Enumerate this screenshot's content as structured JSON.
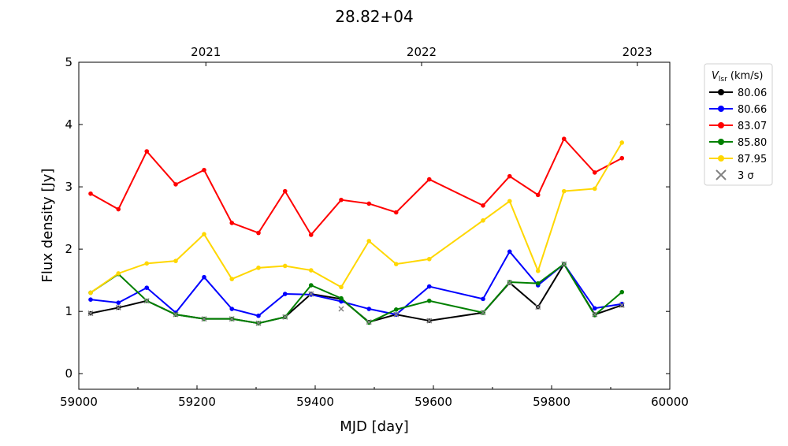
{
  "chart_data": {
    "type": "line",
    "title": "28.82+04",
    "xlabel": "MJD [day]",
    "ylabel": "Flux density [Jy]",
    "xlim": [
      59000,
      60000
    ],
    "ylim": [
      -0.25,
      5
    ],
    "xticks": [
      59000,
      59200,
      59400,
      59600,
      59800,
      60000
    ],
    "yticks": [
      0,
      1,
      2,
      3,
      4,
      5
    ],
    "top_axis": {
      "ticks": [
        {
          "label": "2021",
          "mjd": 59215
        },
        {
          "label": "2022",
          "mjd": 59580
        },
        {
          "label": "2023",
          "mjd": 59945
        }
      ]
    },
    "legend": {
      "title_main": "V",
      "title_sub": "lsr",
      "title_unit": " (km/s)",
      "placement": "outside-right"
    },
    "x": [
      59020,
      59067,
      59115,
      59164,
      59212,
      59259,
      59304,
      59349,
      59393,
      59444,
      59491,
      59537,
      59593,
      59684,
      59729,
      59777,
      59821,
      59873,
      59919
    ],
    "series": [
      {
        "name": "80.06",
        "color": "#000000",
        "values": [
          0.97,
          1.06,
          1.17,
          0.95,
          0.88,
          0.88,
          0.81,
          0.91,
          1.28,
          1.2,
          0.83,
          0.95,
          0.85,
          0.98,
          1.46,
          1.07,
          1.76,
          0.95,
          1.1
        ]
      },
      {
        "name": "80.66",
        "color": "#0000ff",
        "values": [
          1.19,
          1.14,
          1.38,
          0.98,
          1.55,
          1.04,
          0.93,
          1.28,
          1.27,
          1.16,
          1.04,
          0.95,
          1.4,
          1.2,
          1.96,
          1.42,
          1.76,
          1.05,
          1.12
        ]
      },
      {
        "name": "83.07",
        "color": "#ff0000",
        "values": [
          2.89,
          2.64,
          3.57,
          3.04,
          3.27,
          2.42,
          2.26,
          2.93,
          2.23,
          2.79,
          2.73,
          2.59,
          3.12,
          2.7,
          3.17,
          2.87,
          3.77,
          3.23,
          3.46
        ]
      },
      {
        "name": "85.80",
        "color": "#008000",
        "values": [
          1.3,
          1.6,
          1.17,
          0.95,
          0.88,
          0.88,
          0.81,
          0.91,
          1.42,
          1.21,
          0.82,
          1.03,
          1.17,
          0.98,
          1.47,
          1.45,
          1.76,
          0.94,
          1.31
        ]
      },
      {
        "name": "87.95",
        "color": "#ffd700",
        "values": [
          1.3,
          1.61,
          1.77,
          1.81,
          2.24,
          1.52,
          1.7,
          1.73,
          1.66,
          1.39,
          2.13,
          1.76,
          1.84,
          2.46,
          2.77,
          1.65,
          2.93,
          2.97,
          3.71
        ]
      }
    ],
    "sigma": {
      "name": "3 σ",
      "color": "#808080",
      "values": [
        0.97,
        1.06,
        1.17,
        0.95,
        0.88,
        0.88,
        0.81,
        0.91,
        1.28,
        1.04,
        0.83,
        0.95,
        0.85,
        0.98,
        1.46,
        1.07,
        1.76,
        0.95,
        1.1
      ]
    }
  }
}
